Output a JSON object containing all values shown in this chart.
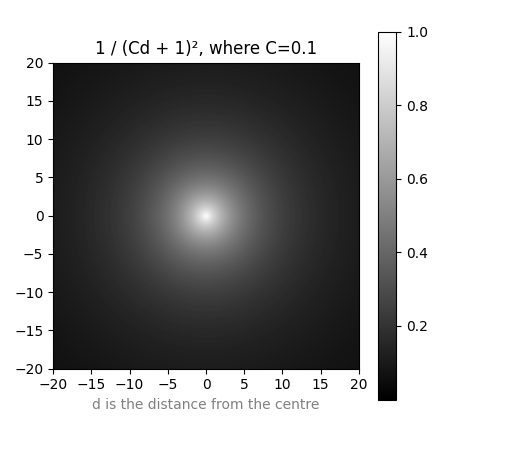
{
  "title": "1 / (Cd + 1)², where C=0.1",
  "xlabel": "d is the distance from the centre",
  "C": 0.1,
  "x_range": [
    -20,
    20
  ],
  "y_range": [
    -20,
    20
  ],
  "resolution": 500,
  "cmap": "gray",
  "vmin": 0,
  "vmax": 1,
  "figsize": [
    5.31,
    4.54
  ],
  "dpi": 100,
  "xlabel_color": "gray",
  "tick_label_size": 10,
  "xticks": [
    -20,
    -15,
    -10,
    -5,
    0,
    5,
    10,
    15,
    20
  ],
  "yticks": [
    -20,
    -15,
    -10,
    -5,
    0,
    5,
    10,
    15,
    20
  ],
  "colorbar_ticks": [
    0.2,
    0.4,
    0.6,
    0.8,
    1.0
  ]
}
